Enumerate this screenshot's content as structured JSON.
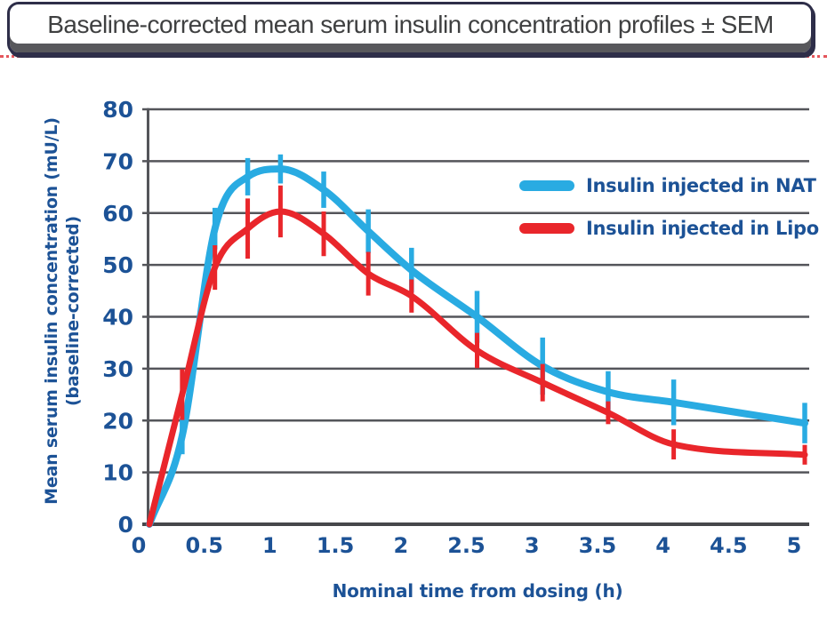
{
  "banner": {
    "title": "Baseline-corrected mean serum insulin concentration profiles ± SEM"
  },
  "chart_data": {
    "type": "line",
    "title": "Baseline-corrected mean serum insulin concentration profiles ± SEM",
    "xlabel": "Nominal time from dosing (h)",
    "ylabel_line1": "Mean serum insulin concentration (mU/L)",
    "ylabel_line2": "(baseline-corrected)",
    "xlim": [
      0,
      5
    ],
    "ylim": [
      0,
      80
    ],
    "xticks": [
      0,
      0.5,
      1,
      1.5,
      2,
      2.5,
      3,
      3.5,
      4,
      4.5,
      5
    ],
    "yticks": [
      0,
      10,
      20,
      30,
      40,
      50,
      60,
      70,
      80
    ],
    "grid": "horizontal-only",
    "legend_position": "upper-right",
    "error_bars": "SEM, vertical, same color as series",
    "x": [
      0,
      0.25,
      0.5,
      0.75,
      1,
      1.33,
      1.67,
      2,
      2.5,
      3,
      3.5,
      4,
      5
    ],
    "series": [
      {
        "name": "Insulin injected in NAT",
        "color": "#29abe2",
        "values": [
          0,
          17,
          57,
          67,
          68.5,
          64.5,
          56.5,
          49,
          40,
          30.5,
          25.5,
          23.5,
          19.5
        ],
        "sem": [
          0,
          3.5,
          4,
          3.6,
          2.8,
          3.5,
          4.2,
          4.3,
          5,
          5.5,
          4,
          4.4,
          3.9
        ]
      },
      {
        "name": "Insulin injected in Lipo",
        "color": "#e9262b",
        "values": [
          0,
          25,
          49.5,
          57,
          60.3,
          56,
          48.3,
          44,
          33.5,
          27.3,
          21.5,
          15.4,
          13.4
        ],
        "sem": [
          0,
          4.9,
          4.3,
          5.8,
          5,
          4.3,
          4.2,
          3.2,
          3.4,
          3.6,
          2.2,
          2.9,
          1.9
        ]
      }
    ],
    "colors": {
      "tick_text": "#1c5296",
      "grid_line": "#54555a",
      "axis_line": "#46474b"
    }
  }
}
